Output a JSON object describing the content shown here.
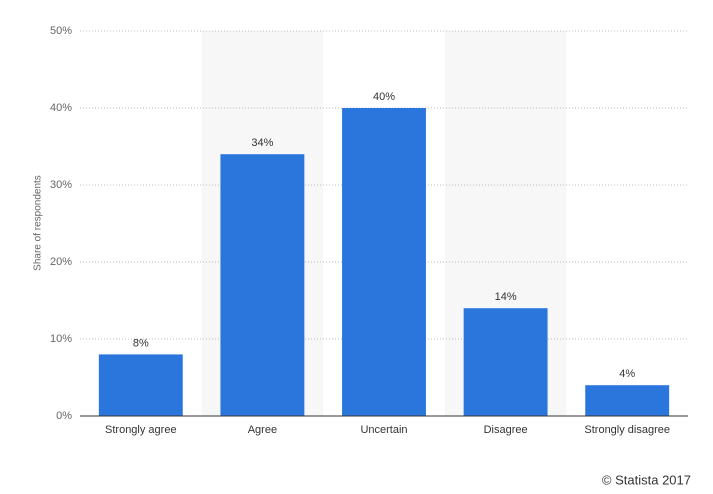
{
  "chart_data": {
    "type": "bar",
    "y_label": "Share of respondents",
    "categories": [
      "Strongly agree",
      "Agree",
      "Uncertain",
      "Disagree",
      "Strongly disagree"
    ],
    "values": [
      8,
      34,
      40,
      14,
      4
    ],
    "value_labels": [
      "8%",
      "34%",
      "40%",
      "14%",
      "4%"
    ],
    "color": "#2a76dd",
    "ylim": [
      0,
      50
    ],
    "yticks": [
      {
        "value": 0,
        "label": "0%"
      },
      {
        "value": 10,
        "label": "10%"
      },
      {
        "value": 20,
        "label": "20%"
      },
      {
        "value": 30,
        "label": "30%"
      },
      {
        "value": 40,
        "label": "40%"
      },
      {
        "value": 50,
        "label": "50%"
      }
    ],
    "grid": true,
    "credit": "© Statista 2017"
  }
}
